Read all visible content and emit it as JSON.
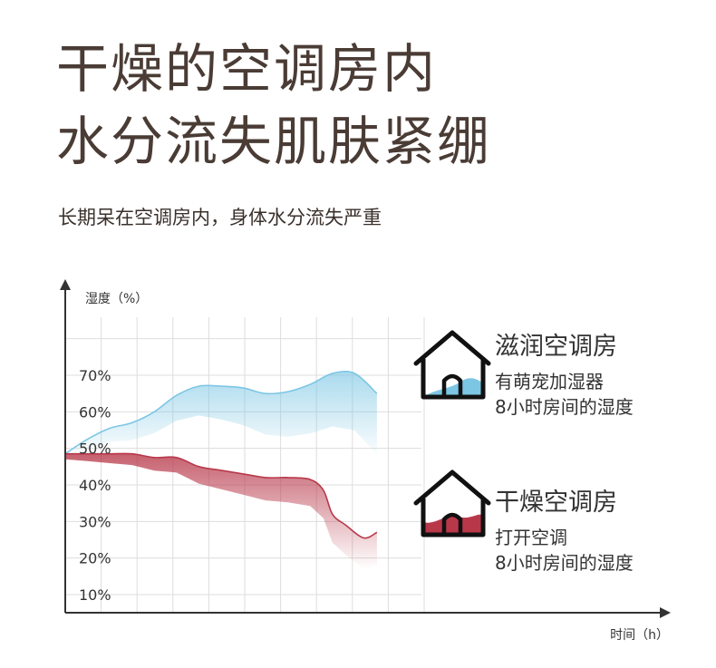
{
  "headline": {
    "line1": "干燥的空调房内",
    "line2": "水分流失肌肤紧绷",
    "subtitle": "长期呆在空调房内，身体水分流失严重"
  },
  "legend": {
    "humidified": {
      "title": "滋润空调房",
      "line1": "有萌宠加湿器",
      "line2": "8小时房间的湿度"
    },
    "dry": {
      "title": "干燥空调房",
      "line1": "打开空调",
      "line2": "8小时房间的湿度"
    }
  },
  "icons": {
    "humidified": "house-icon",
    "dry": "house-icon"
  },
  "colors": {
    "humidified": "#7cc6e4",
    "dry": "#b8384a",
    "axis": "#333333",
    "grid": "#dddddd"
  },
  "chart_data": {
    "type": "area",
    "ylabel": "湿度（%）",
    "xlabel": "时间（h）",
    "y_ticks": [
      "10%",
      "20%",
      "30%",
      "40%",
      "50%",
      "60%",
      "70%"
    ],
    "ylim": [
      10,
      80
    ],
    "xlim": [
      0,
      8
    ],
    "grid": true,
    "legend_placement": "right",
    "series": [
      {
        "key": "humidified",
        "x": [
          0,
          0.5,
          1,
          1.5,
          2,
          2.5,
          3,
          3.5,
          4,
          4.5,
          5,
          5.5,
          6,
          6.5,
          7
        ],
        "y": [
          48.5,
          52.5,
          55.5,
          57,
          60,
          64.5,
          67,
          67,
          66.5,
          65,
          65.5,
          67.5,
          70.5,
          70.5,
          65
        ]
      },
      {
        "key": "dry",
        "x": [
          0,
          0.5,
          1,
          1.5,
          2,
          2.5,
          3,
          3.5,
          4,
          4.5,
          5,
          5.5,
          5.8,
          6,
          6.3,
          6.7,
          7
        ],
        "y": [
          48.5,
          48.5,
          48.5,
          48.5,
          47.5,
          47.5,
          45,
          44,
          43,
          42,
          42,
          41.5,
          38.5,
          32,
          29,
          25.5,
          27
        ]
      }
    ]
  }
}
